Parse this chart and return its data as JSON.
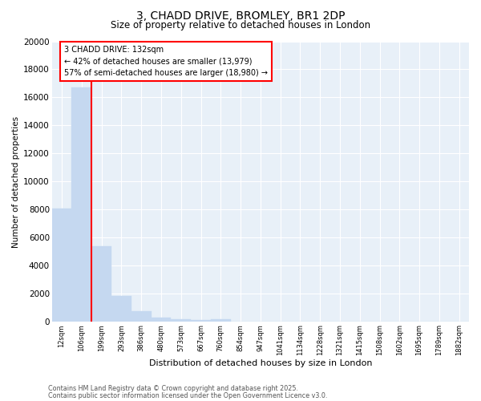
{
  "title_line1": "3, CHADD DRIVE, BROMLEY, BR1 2DP",
  "title_line2": "Size of property relative to detached houses in London",
  "xlabel": "Distribution of detached houses by size in London",
  "ylabel": "Number of detached properties",
  "categories": [
    "12sqm",
    "106sqm",
    "199sqm",
    "293sqm",
    "386sqm",
    "480sqm",
    "573sqm",
    "667sqm",
    "760sqm",
    "854sqm",
    "947sqm",
    "1041sqm",
    "1134sqm",
    "1228sqm",
    "1321sqm",
    "1415sqm",
    "1508sqm",
    "1602sqm",
    "1695sqm",
    "1789sqm",
    "1882sqm"
  ],
  "values": [
    8100,
    16700,
    5400,
    1850,
    750,
    320,
    220,
    130,
    200,
    0,
    0,
    0,
    0,
    0,
    0,
    0,
    0,
    0,
    0,
    0,
    0
  ],
  "bar_color": "#c5d8f0",
  "bar_edgecolor": "#c5d8f0",
  "vline_x": 1.5,
  "annotation_text": "3 CHADD DRIVE: 132sqm\n← 42% of detached houses are smaller (13,979)\n57% of semi-detached houses are larger (18,980) →",
  "annotation_box_facecolor": "white",
  "annotation_box_edgecolor": "red",
  "vline_color": "red",
  "ylim": [
    0,
    20000
  ],
  "yticks": [
    0,
    2000,
    4000,
    6000,
    8000,
    10000,
    12000,
    14000,
    16000,
    18000,
    20000
  ],
  "plot_bg_color": "#e8f0f8",
  "fig_bg_color": "#ffffff",
  "grid_color": "#ffffff",
  "footer_line1": "Contains HM Land Registry data © Crown copyright and database right 2025.",
  "footer_line2": "Contains public sector information licensed under the Open Government Licence v3.0."
}
